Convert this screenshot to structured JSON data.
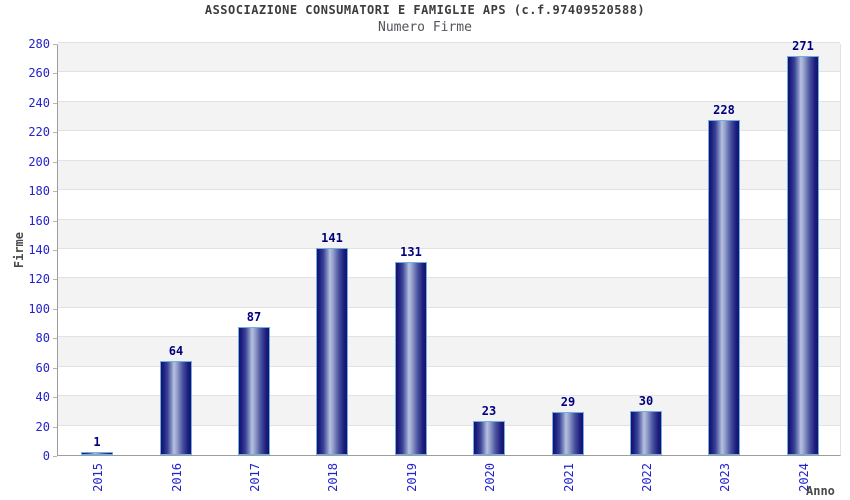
{
  "header": {
    "title": "ASSOCIAZIONE CONSUMATORI E FAMIGLIE APS (c.f.97409520588)",
    "subtitle": "Numero Firme"
  },
  "chart_data": {
    "type": "bar",
    "title": "ASSOCIAZIONE CONSUMATORI E FAMIGLIE APS (c.f.97409520588)",
    "subtitle": "Numero Firme",
    "xlabel": "Anno",
    "ylabel": "Firme",
    "categories": [
      "2015",
      "2016",
      "2017",
      "2018",
      "2019",
      "2020",
      "2021",
      "2022",
      "2023",
      "2024"
    ],
    "values": [
      1,
      64,
      87,
      141,
      131,
      23,
      29,
      30,
      228,
      271
    ],
    "ylim": [
      0,
      280
    ],
    "ytick_step": 20,
    "yticks": [
      0,
      20,
      40,
      60,
      80,
      100,
      120,
      140,
      160,
      180,
      200,
      220,
      240,
      260,
      280
    ],
    "grid": "horizontal-bands-alternating",
    "legend": "none",
    "colors": {
      "tick_label": "#2323cc",
      "value_label": "#00007f",
      "bar_border": "#6fb0e4",
      "bar_dark": "#13136a",
      "bar_highlight": "#b8c1e0",
      "band_fill": "#f3f3f3",
      "grid_line": "#e2e2e2",
      "axis_line": "#9d9d9d",
      "title_color": "#3c3c3c",
      "subtitle_color": "#54545c",
      "axis_title_color": "#4a4a4a"
    }
  }
}
